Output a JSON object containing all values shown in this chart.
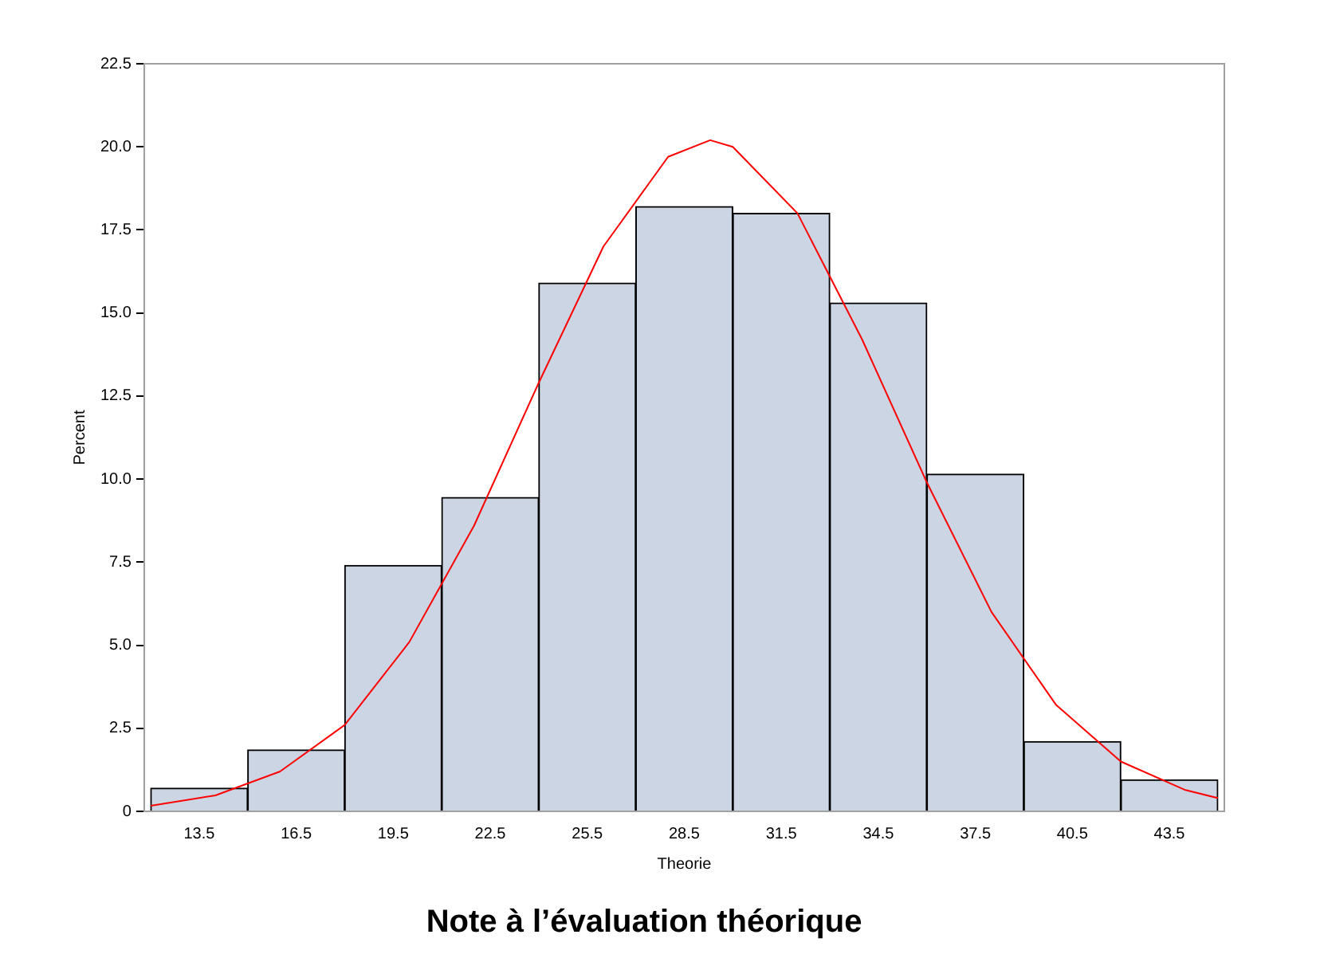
{
  "chart_data": {
    "type": "histogram",
    "title": "Note à l’évaluation théorique",
    "xlabel": "Theorie",
    "ylabel": "Percent",
    "bins": [
      12,
      15,
      18,
      21,
      24,
      27,
      30,
      33,
      36,
      39,
      42,
      45
    ],
    "values": [
      0.7,
      1.85,
      7.4,
      9.45,
      15.9,
      18.2,
      18.0,
      15.3,
      10.15,
      2.1,
      0.95
    ],
    "color": "#cbd5e3",
    "series": [
      {
        "type": "line",
        "color": "#ff0000",
        "x": [
          12,
          14,
          16,
          18,
          20,
          22,
          24,
          26,
          28,
          29.3,
          30,
          32,
          34,
          36,
          38,
          40,
          42,
          44,
          45
        ],
        "values": [
          0.17,
          0.48,
          1.2,
          2.6,
          5.1,
          8.6,
          12.9,
          17.0,
          19.7,
          20.2,
          20.0,
          18.0,
          14.2,
          9.9,
          6.0,
          3.2,
          1.5,
          0.64,
          0.4
        ]
      }
    ],
    "marker": "none",
    "xlim": [
      11.8,
      45.2
    ],
    "xticks": [
      13.5,
      16.5,
      19.5,
      22.5,
      25.5,
      28.5,
      31.5,
      34.5,
      37.5,
      40.5,
      43.5
    ],
    "ylim": [
      0,
      22.5
    ],
    "yticks": [
      0,
      2.5,
      {
        "value": 5,
        "label": "5.0"
      },
      7.5,
      {
        "value": 10,
        "label": "10.0"
      },
      12.5,
      {
        "value": 15,
        "label": "15.0"
      },
      17.5,
      {
        "value": 20,
        "label": "20.0"
      },
      22.5
    ],
    "grid": false,
    "legend": false
  }
}
